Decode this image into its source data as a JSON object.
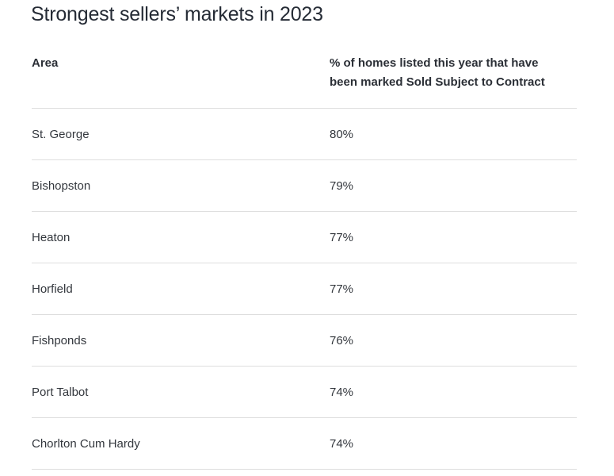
{
  "title": "Strongest sellers’ markets in 2023",
  "table": {
    "headers": [
      "Area",
      "% of homes listed this year that have been marked Sold Subject to Contract"
    ],
    "rows": [
      {
        "area": "St. George",
        "percent": "80%"
      },
      {
        "area": "Bishopston",
        "percent": "79%"
      },
      {
        "area": "Heaton",
        "percent": "77%"
      },
      {
        "area": "Horfield",
        "percent": "77%"
      },
      {
        "area": "Fishponds",
        "percent": "76%"
      },
      {
        "area": "Port Talbot",
        "percent": "74%"
      },
      {
        "area": "Chorlton Cum Hardy",
        "percent": "74%"
      }
    ]
  }
}
